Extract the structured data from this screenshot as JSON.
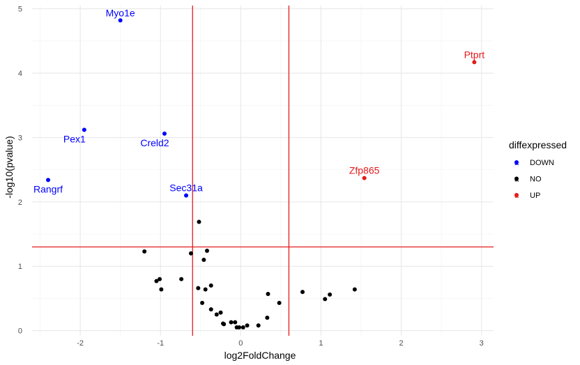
{
  "chart_data": {
    "type": "scatter",
    "xlabel": "log2FoldChange",
    "ylabel": "-log10(pvalue)",
    "xlim": [
      -2.6,
      3.15
    ],
    "ylim": [
      -0.08,
      5.05
    ],
    "xticks": [
      -2,
      -1,
      0,
      1,
      2,
      3
    ],
    "yticks": [
      0,
      1,
      2,
      3,
      4,
      5
    ],
    "grid": true,
    "thresholds": {
      "x": [
        -0.6,
        0.6
      ],
      "y": [
        1.3
      ],
      "color": "#e41a1c"
    },
    "legend": {
      "title": "diffexpressed",
      "position": "right",
      "entries": [
        {
          "label": "DOWN",
          "color": "#0000ff"
        },
        {
          "label": "NO",
          "color": "#000000"
        },
        {
          "label": "UP",
          "color": "#e41a1c"
        }
      ]
    },
    "series": [
      {
        "name": "DOWN",
        "color": "#0000ff",
        "points": [
          {
            "x": -1.5,
            "y": 4.82,
            "label": "Myo1e",
            "label_pos": "above"
          },
          {
            "x": -1.95,
            "y": 3.12,
            "label": "Pex1",
            "label_pos": "below-left"
          },
          {
            "x": -0.95,
            "y": 3.06,
            "label": "Creld2",
            "label_pos": "below-left"
          },
          {
            "x": -2.4,
            "y": 2.34,
            "label": "Rangrf",
            "label_pos": "below"
          },
          {
            "x": -0.68,
            "y": 2.1,
            "label": "Sec31a",
            "label_pos": "above"
          }
        ]
      },
      {
        "name": "NO",
        "color": "#000000",
        "points": [
          {
            "x": -0.52,
            "y": 1.69
          },
          {
            "x": -1.2,
            "y": 1.23
          },
          {
            "x": -0.62,
            "y": 1.2
          },
          {
            "x": -0.42,
            "y": 1.24
          },
          {
            "x": -0.46,
            "y": 1.1
          },
          {
            "x": -1.05,
            "y": 0.77
          },
          {
            "x": -1.01,
            "y": 0.8
          },
          {
            "x": -0.99,
            "y": 0.64
          },
          {
            "x": -0.74,
            "y": 0.8
          },
          {
            "x": -0.53,
            "y": 0.66
          },
          {
            "x": -0.44,
            "y": 0.64
          },
          {
            "x": -0.37,
            "y": 0.7
          },
          {
            "x": -0.48,
            "y": 0.43
          },
          {
            "x": -0.37,
            "y": 0.33
          },
          {
            "x": -0.3,
            "y": 0.25
          },
          {
            "x": -0.25,
            "y": 0.28
          },
          {
            "x": -0.22,
            "y": 0.11
          },
          {
            "x": -0.21,
            "y": 0.1
          },
          {
            "x": -0.12,
            "y": 0.13
          },
          {
            "x": -0.07,
            "y": 0.13
          },
          {
            "x": -0.05,
            "y": 0.05
          },
          {
            "x": -0.02,
            "y": 0.05
          },
          {
            "x": 0.03,
            "y": 0.05
          },
          {
            "x": 0.08,
            "y": 0.08
          },
          {
            "x": 0.22,
            "y": 0.08
          },
          {
            "x": 0.33,
            "y": 0.2
          },
          {
            "x": 0.34,
            "y": 0.57
          },
          {
            "x": 0.48,
            "y": 0.43
          },
          {
            "x": 0.77,
            "y": 0.6
          },
          {
            "x": 1.05,
            "y": 0.49
          },
          {
            "x": 1.11,
            "y": 0.56
          },
          {
            "x": 1.42,
            "y": 0.64
          }
        ]
      },
      {
        "name": "UP",
        "color": "#e41a1c",
        "points": [
          {
            "x": 2.91,
            "y": 4.17,
            "label": "Ptprt",
            "label_pos": "above"
          },
          {
            "x": 1.54,
            "y": 2.37,
            "label": "Zfp865",
            "label_pos": "above"
          }
        ]
      }
    ]
  }
}
